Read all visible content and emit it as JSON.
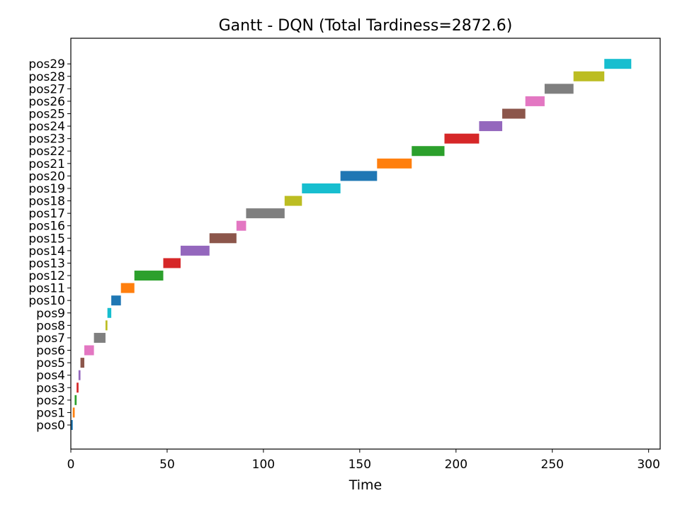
{
  "chart_data": {
    "type": "bar",
    "orientation": "horizontal",
    "title": "Gantt - DQN (Total Tardiness=2872.6)",
    "xlabel": "Time",
    "ylabel": "",
    "xlim": [
      0,
      306
    ],
    "xticks": [
      0,
      50,
      100,
      150,
      200,
      250,
      300
    ],
    "grid": false,
    "categories": [
      "pos0",
      "pos1",
      "pos2",
      "pos3",
      "pos4",
      "pos5",
      "pos6",
      "pos7",
      "pos8",
      "pos9",
      "pos10",
      "pos11",
      "pos12",
      "pos13",
      "pos14",
      "pos15",
      "pos16",
      "pos17",
      "pos18",
      "pos19",
      "pos20",
      "pos21",
      "pos22",
      "pos23",
      "pos24",
      "pos25",
      "pos26",
      "pos27",
      "pos28",
      "pos29"
    ],
    "start": [
      0,
      1,
      2,
      3,
      4,
      5,
      7,
      12,
      18,
      19,
      21,
      26,
      33,
      48,
      57,
      72,
      86,
      91,
      111,
      120,
      140,
      159,
      177,
      194,
      212,
      224,
      236,
      246,
      261,
      277
    ],
    "end": [
      1,
      2,
      3,
      4,
      5,
      7,
      12,
      18,
      19,
      21,
      26,
      33,
      48,
      57,
      72,
      86,
      91,
      111,
      120,
      140,
      159,
      177,
      194,
      212,
      224,
      236,
      246,
      261,
      277,
      291
    ],
    "colors": [
      "#1f77b4",
      "#ff7f0e",
      "#2ca02c",
      "#d62728",
      "#9467bd",
      "#8c564b",
      "#e377c2",
      "#7f7f7f",
      "#bcbd22",
      "#17becf"
    ]
  }
}
